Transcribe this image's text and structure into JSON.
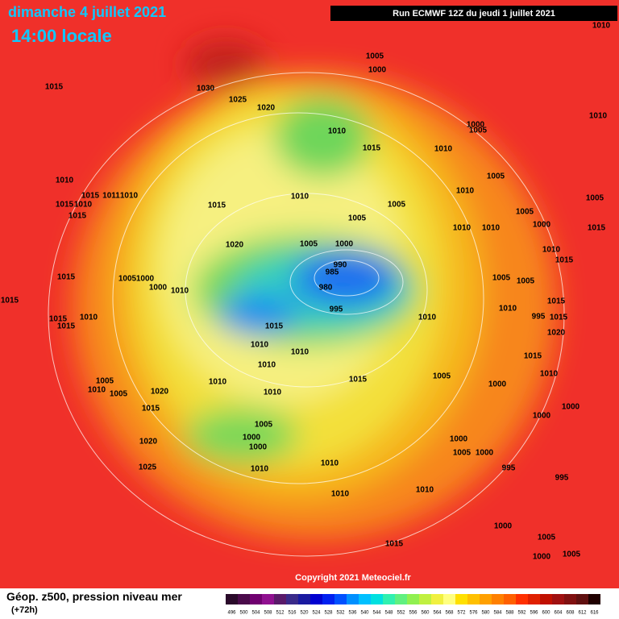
{
  "header": {
    "date": "dimanche 4 juillet 2021",
    "time": "14:00 locale",
    "run": "Run ECMWF 12Z du jeudi 1 juillet 2021"
  },
  "footer": {
    "title": "Géop. z500, pression niveau mer",
    "lead": "(+72h)",
    "copyright": "Copyright 2021 Meteociel.fr"
  },
  "legend": {
    "levels": [
      496,
      500,
      504,
      508,
      512,
      516,
      520,
      524,
      528,
      532,
      536,
      540,
      544,
      548,
      552,
      556,
      560,
      564,
      568,
      572,
      576,
      580,
      584,
      588,
      592,
      596,
      600,
      604,
      608,
      612,
      616
    ]
  },
  "isobar_labels": [
    1005,
    1000,
    1015,
    1030,
    1025,
    1020,
    1010,
    1010,
    1000,
    1005,
    1010,
    1015,
    1010,
    1005,
    1010,
    1010,
    1005,
    1005,
    1010,
    1015,
    1011,
    1010,
    1015,
    1010,
    1015,
    1015,
    1005,
    1000,
    1015,
    1010,
    1010,
    1005,
    1020,
    1005,
    1000,
    990,
    985,
    980,
    995,
    1010,
    1015,
    1015,
    1005,
    1000,
    1000,
    1010,
    1015,
    1005,
    1005,
    1015,
    1010,
    995,
    1020,
    1015,
    1015,
    1010,
    1015,
    1010,
    1015,
    1010,
    1010,
    1010,
    1015,
    1010,
    1005,
    1015,
    1010,
    1005,
    1010,
    1005,
    1020,
    1010,
    1000,
    1015,
    1005,
    1000,
    1000,
    1000,
    1000,
    1000,
    1005,
    1000,
    1020,
    1010,
    1025,
    1010,
    995,
    995,
    1010,
    1010,
    1000,
    1005,
    1000,
    1015,
    1005
  ]
}
